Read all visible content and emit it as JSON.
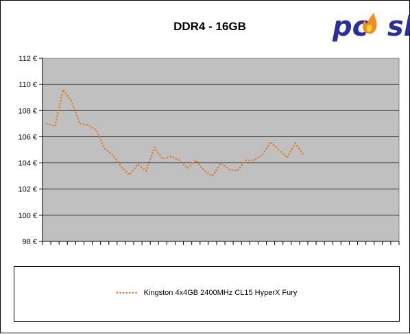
{
  "chart_data": {
    "type": "line",
    "title": "DDR4 - 16GB",
    "xlabel": "",
    "ylabel": "",
    "ylim": [
      98,
      112
    ],
    "y_ticks": [
      "98 €",
      "100 €",
      "102 €",
      "104 €",
      "106 €",
      "108 €",
      "110 €",
      "112 €"
    ],
    "x_categories_count": 43,
    "grid": "horizontal",
    "legend_position": "bottom",
    "background_color": "#c0c0c0",
    "series": [
      {
        "name": "Kingston 4x4GB 2400MHz CL15 HyperX Fury",
        "color": "#e07b23",
        "line_style": "dotted",
        "values": [
          107.0,
          106.8,
          109.6,
          108.7,
          107.0,
          106.9,
          106.5,
          105.1,
          104.6,
          103.7,
          103.1,
          103.9,
          103.4,
          105.2,
          104.3,
          104.5,
          104.2,
          103.6,
          104.2,
          103.4,
          103.0,
          104.0,
          103.5,
          103.4,
          104.2,
          104.2,
          104.6,
          105.6,
          105.0,
          104.4,
          105.5,
          104.6
        ]
      }
    ]
  },
  "logo": {
    "text": "pcosk",
    "colors": {
      "pc": "#2b2f9c",
      "sk": "#2b2f9c",
      "flame": "#f28c1e"
    }
  }
}
